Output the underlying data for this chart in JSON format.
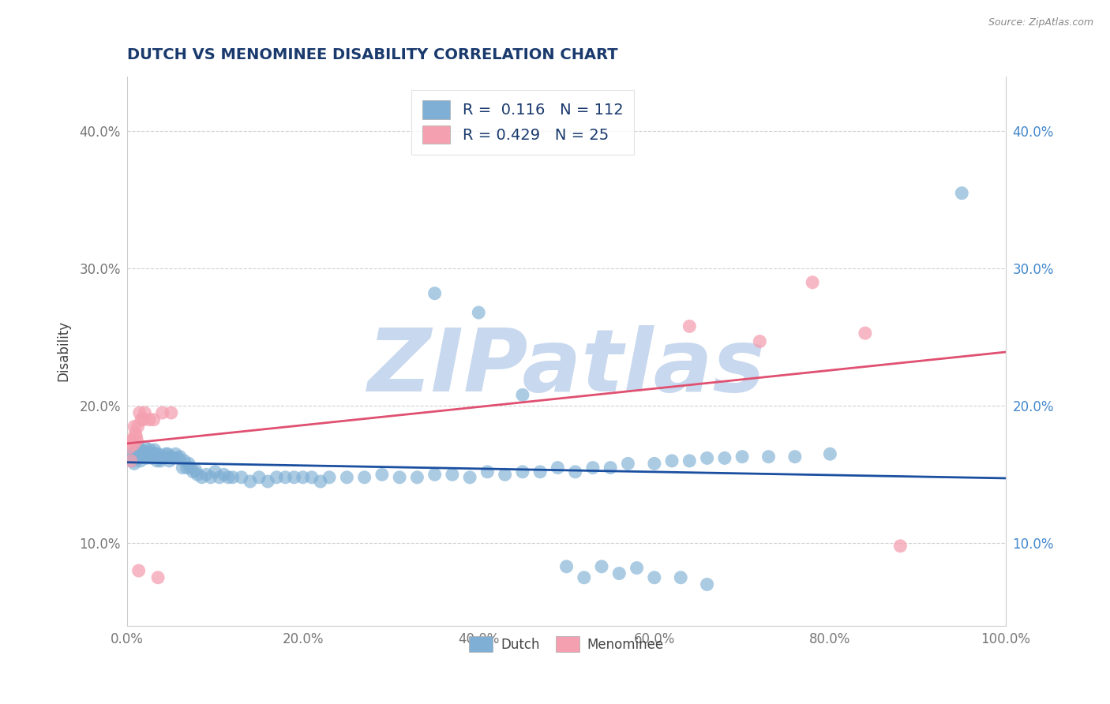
{
  "title": "DUTCH VS MENOMINEE DISABILITY CORRELATION CHART",
  "source_text": "Source: ZipAtlas.com",
  "ylabel": "Disability",
  "xlim": [
    0.0,
    1.0
  ],
  "ylim": [
    0.04,
    0.44
  ],
  "x_ticks": [
    0.0,
    0.2,
    0.4,
    0.6,
    0.8,
    1.0
  ],
  "x_tick_labels": [
    "0.0%",
    "20.0%",
    "40.0%",
    "60.0%",
    "80.0%",
    "100.0%"
  ],
  "y_ticks": [
    0.1,
    0.2,
    0.3,
    0.4
  ],
  "y_tick_labels": [
    "10.0%",
    "20.0%",
    "30.0%",
    "40.0%"
  ],
  "dutch_color": "#7fafd4",
  "menominee_color": "#f4a0b0",
  "dutch_line_color": "#1a4fa0",
  "menominee_line_color": "#e05070",
  "background_color": "#ffffff",
  "watermark_text": "ZIPatlas",
  "watermark_color": "#c8d8ee",
  "legend_R_dutch": "0.116",
  "legend_N_dutch": "112",
  "legend_R_menominee": "0.429",
  "legend_N_menominee": "25",
  "legend_label_dutch": "Dutch",
  "legend_label_menominee": "Menominee",
  "dutch_x": [
    0.005,
    0.006,
    0.007,
    0.008,
    0.009,
    0.01,
    0.01,
    0.011,
    0.012,
    0.012,
    0.013,
    0.014,
    0.015,
    0.015,
    0.016,
    0.017,
    0.018,
    0.019,
    0.02,
    0.02,
    0.021,
    0.022,
    0.023,
    0.024,
    0.025,
    0.026,
    0.027,
    0.028,
    0.029,
    0.03,
    0.031,
    0.032,
    0.033,
    0.034,
    0.035,
    0.036,
    0.038,
    0.04,
    0.042,
    0.044,
    0.046,
    0.048,
    0.05,
    0.052,
    0.055,
    0.058,
    0.06,
    0.063,
    0.065,
    0.068,
    0.07,
    0.072,
    0.075,
    0.078,
    0.08,
    0.085,
    0.09,
    0.095,
    0.1,
    0.105,
    0.11,
    0.115,
    0.12,
    0.13,
    0.14,
    0.15,
    0.16,
    0.17,
    0.18,
    0.19,
    0.2,
    0.21,
    0.22,
    0.23,
    0.25,
    0.27,
    0.29,
    0.31,
    0.33,
    0.35,
    0.37,
    0.39,
    0.41,
    0.43,
    0.45,
    0.47,
    0.49,
    0.51,
    0.53,
    0.55,
    0.57,
    0.6,
    0.62,
    0.64,
    0.66,
    0.68,
    0.7,
    0.73,
    0.76,
    0.8,
    0.35,
    0.4,
    0.45,
    0.5,
    0.52,
    0.54,
    0.56,
    0.58,
    0.6,
    0.63,
    0.66,
    0.95
  ],
  "dutch_y": [
    0.165,
    0.16,
    0.165,
    0.158,
    0.162,
    0.168,
    0.163,
    0.166,
    0.17,
    0.163,
    0.165,
    0.162,
    0.168,
    0.16,
    0.164,
    0.165,
    0.163,
    0.167,
    0.163,
    0.17,
    0.165,
    0.162,
    0.165,
    0.165,
    0.165,
    0.168,
    0.166,
    0.162,
    0.165,
    0.163,
    0.168,
    0.163,
    0.165,
    0.16,
    0.165,
    0.162,
    0.16,
    0.162,
    0.163,
    0.165,
    0.165,
    0.16,
    0.163,
    0.162,
    0.165,
    0.162,
    0.163,
    0.155,
    0.16,
    0.155,
    0.158,
    0.155,
    0.152,
    0.153,
    0.15,
    0.148,
    0.15,
    0.148,
    0.152,
    0.148,
    0.15,
    0.148,
    0.148,
    0.148,
    0.145,
    0.148,
    0.145,
    0.148,
    0.148,
    0.148,
    0.148,
    0.148,
    0.145,
    0.148,
    0.148,
    0.148,
    0.15,
    0.148,
    0.148,
    0.15,
    0.15,
    0.148,
    0.152,
    0.15,
    0.152,
    0.152,
    0.155,
    0.152,
    0.155,
    0.155,
    0.158,
    0.158,
    0.16,
    0.16,
    0.162,
    0.162,
    0.163,
    0.163,
    0.163,
    0.165,
    0.282,
    0.268,
    0.208,
    0.083,
    0.075,
    0.083,
    0.078,
    0.082,
    0.075,
    0.075,
    0.07,
    0.355
  ],
  "menominee_x": [
    0.003,
    0.004,
    0.005,
    0.006,
    0.007,
    0.008,
    0.009,
    0.01,
    0.011,
    0.012,
    0.013,
    0.014,
    0.016,
    0.018,
    0.02,
    0.025,
    0.03,
    0.035,
    0.04,
    0.05,
    0.64,
    0.72,
    0.78,
    0.84,
    0.88
  ],
  "menominee_y": [
    0.17,
    0.16,
    0.175,
    0.175,
    0.172,
    0.185,
    0.18,
    0.178,
    0.175,
    0.185,
    0.08,
    0.195,
    0.19,
    0.19,
    0.195,
    0.19,
    0.19,
    0.075,
    0.195,
    0.195,
    0.258,
    0.247,
    0.29,
    0.253,
    0.098
  ]
}
